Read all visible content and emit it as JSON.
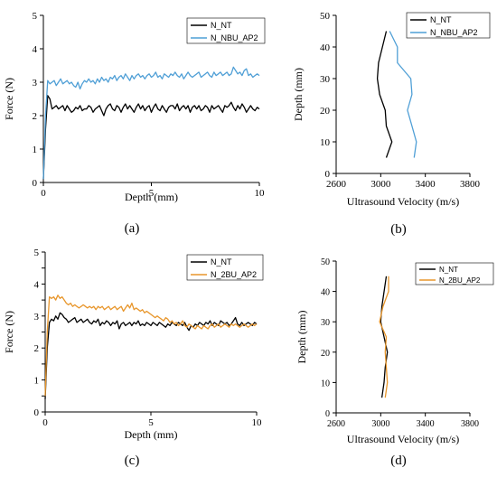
{
  "colors": {
    "black": "#000000",
    "blue": "#4f9fd6",
    "orange": "#e8962b",
    "axis": "#000000"
  },
  "chart_data": [
    {
      "id": "a",
      "type": "line",
      "panel_label": "(a)",
      "xlabel": "Depth (mm)",
      "ylabel": "Force (N)",
      "xlim": [
        0,
        10
      ],
      "ylim": [
        0,
        5
      ],
      "xticks": [
        0,
        5,
        10
      ],
      "yticks": [
        0,
        1,
        2,
        3,
        4,
        5
      ],
      "legend_position": "top-right",
      "series": [
        {
          "name": "N_NT",
          "color": "#000000",
          "x": [
            0,
            0.1,
            0.2,
            0.3,
            0.4,
            0.5,
            0.6,
            0.7,
            0.8,
            0.9,
            1.0,
            1.1,
            1.2,
            1.3,
            1.4,
            1.5,
            1.6,
            1.7,
            1.8,
            1.9,
            2.0,
            2.1,
            2.2,
            2.3,
            2.4,
            2.5,
            2.6,
            2.7,
            2.8,
            2.9,
            3.0,
            3.1,
            3.2,
            3.3,
            3.4,
            3.5,
            3.6,
            3.7,
            3.8,
            3.9,
            4.0,
            4.1,
            4.2,
            4.3,
            4.4,
            4.5,
            4.6,
            4.7,
            4.8,
            4.9,
            5.0,
            5.1,
            5.2,
            5.3,
            5.4,
            5.5,
            5.6,
            5.7,
            5.8,
            5.9,
            6.0,
            6.1,
            6.2,
            6.3,
            6.4,
            6.5,
            6.6,
            6.7,
            6.8,
            6.9,
            7.0,
            7.1,
            7.2,
            7.3,
            7.4,
            7.5,
            7.6,
            7.7,
            7.8,
            7.9,
            8.0,
            8.1,
            8.2,
            8.3,
            8.4,
            8.5,
            8.6,
            8.7,
            8.8,
            8.9,
            9.0,
            9.1,
            9.2,
            9.3,
            9.4,
            9.5,
            9.6,
            9.7,
            9.8,
            9.9,
            10.0
          ],
          "y": [
            0.1,
            1.6,
            2.6,
            2.5,
            2.2,
            2.25,
            2.3,
            2.2,
            2.25,
            2.3,
            2.15,
            2.3,
            2.2,
            2.1,
            2.15,
            2.25,
            2.2,
            2.3,
            2.15,
            2.2,
            2.2,
            2.3,
            2.25,
            2.1,
            2.2,
            2.25,
            2.3,
            2.15,
            2.0,
            2.2,
            2.3,
            2.35,
            2.2,
            2.15,
            2.3,
            2.25,
            2.1,
            2.25,
            2.35,
            2.2,
            2.3,
            2.2,
            2.1,
            2.25,
            2.35,
            2.2,
            2.3,
            2.15,
            2.25,
            2.3,
            2.1,
            2.25,
            2.35,
            2.2,
            2.15,
            2.3,
            2.2,
            2.1,
            2.25,
            2.3,
            2.3,
            2.2,
            2.35,
            2.15,
            2.25,
            2.3,
            2.2,
            2.3,
            2.1,
            2.25,
            2.3,
            2.2,
            2.3,
            2.15,
            2.2,
            2.3,
            2.25,
            2.1,
            2.3,
            2.2,
            2.25,
            2.3,
            2.2,
            2.1,
            2.3,
            2.25,
            2.3,
            2.4,
            2.25,
            2.15,
            2.3,
            2.2,
            2.35,
            2.25,
            2.1,
            2.2,
            2.3,
            2.2,
            2.15,
            2.25,
            2.2
          ]
        },
        {
          "name": "N_NBU_AP2",
          "color": "#4f9fd6",
          "x": [
            0,
            0.1,
            0.2,
            0.3,
            0.4,
            0.5,
            0.6,
            0.7,
            0.8,
            0.9,
            1.0,
            1.1,
            1.2,
            1.3,
            1.4,
            1.5,
            1.6,
            1.7,
            1.8,
            1.9,
            2.0,
            2.1,
            2.2,
            2.3,
            2.4,
            2.5,
            2.6,
            2.7,
            2.8,
            2.9,
            3.0,
            3.1,
            3.2,
            3.3,
            3.4,
            3.5,
            3.6,
            3.7,
            3.8,
            3.9,
            4.0,
            4.1,
            4.2,
            4.3,
            4.4,
            4.5,
            4.6,
            4.7,
            4.8,
            4.9,
            5.0,
            5.1,
            5.2,
            5.3,
            5.4,
            5.5,
            5.6,
            5.7,
            5.8,
            5.9,
            6.0,
            6.1,
            6.2,
            6.3,
            6.4,
            6.5,
            6.6,
            6.7,
            6.8,
            6.9,
            7.0,
            7.1,
            7.2,
            7.3,
            7.4,
            7.5,
            7.6,
            7.7,
            7.8,
            7.9,
            8.0,
            8.1,
            8.2,
            8.3,
            8.4,
            8.5,
            8.6,
            8.7,
            8.8,
            8.9,
            9.0,
            9.1,
            9.2,
            9.3,
            9.4,
            9.5,
            9.6,
            9.7,
            9.8,
            9.9,
            10.0
          ],
          "y": [
            0.1,
            2.0,
            3.05,
            2.95,
            3.0,
            3.05,
            2.9,
            3.0,
            3.1,
            2.95,
            3.0,
            3.05,
            2.95,
            3.0,
            2.9,
            2.85,
            3.0,
            2.8,
            2.95,
            3.05,
            3.0,
            3.1,
            3.0,
            3.05,
            2.95,
            3.1,
            3.0,
            3.15,
            3.05,
            3.1,
            3.0,
            3.15,
            3.1,
            3.2,
            3.05,
            3.15,
            3.2,
            3.1,
            3.25,
            3.15,
            3.05,
            3.2,
            3.1,
            3.2,
            3.25,
            3.15,
            3.2,
            3.1,
            3.2,
            3.25,
            3.15,
            3.2,
            3.3,
            3.15,
            3.2,
            3.1,
            3.25,
            3.2,
            3.15,
            3.25,
            3.2,
            3.3,
            3.2,
            3.15,
            3.25,
            3.1,
            3.2,
            3.3,
            3.2,
            3.15,
            3.2,
            3.25,
            3.3,
            3.15,
            3.2,
            3.25,
            3.3,
            3.2,
            3.15,
            3.3,
            3.2,
            3.25,
            3.3,
            3.2,
            3.25,
            3.3,
            3.2,
            3.25,
            3.45,
            3.35,
            3.25,
            3.3,
            3.2,
            3.35,
            3.4,
            3.2,
            3.25,
            3.15,
            3.2,
            3.25,
            3.2
          ]
        }
      ]
    },
    {
      "id": "b",
      "type": "line",
      "panel_label": "(b)",
      "xlabel": "Ultrasound Velocity (m/s)",
      "ylabel": "Depth (mm)",
      "xlim": [
        2600,
        3800
      ],
      "ylim": [
        0,
        50
      ],
      "xticks": [
        2600,
        3000,
        3400,
        3800
      ],
      "yticks": [
        0,
        10,
        20,
        30,
        40,
        50
      ],
      "legend_position": "top-right",
      "series": [
        {
          "name": "N_NT",
          "color": "#000000",
          "x": [
            3050,
            3100,
            3050,
            3040,
            2990,
            2970,
            2980,
            3050
          ],
          "y": [
            5,
            10,
            15,
            20,
            25,
            30,
            35,
            45
          ]
        },
        {
          "name": "N_NBU_AP2",
          "color": "#4f9fd6",
          "x": [
            3300,
            3320,
            3280,
            3240,
            3280,
            3270,
            3150,
            3150,
            3080
          ],
          "y": [
            5,
            10,
            15,
            20,
            25,
            30,
            35,
            40,
            45
          ]
        }
      ]
    },
    {
      "id": "c",
      "type": "line",
      "panel_label": "(c)",
      "xlabel": "Depth (mm)",
      "ylabel": "Force (N)",
      "xlim": [
        0,
        10
      ],
      "ylim": [
        0,
        5
      ],
      "xticks": [
        0,
        5,
        10
      ],
      "yticks": [
        0,
        0.5,
        1,
        1.5,
        2,
        2.5,
        3,
        3.5,
        4,
        4.5,
        5
      ],
      "yticklabels": [
        "0",
        "",
        "1",
        "",
        "2",
        "",
        "3",
        "",
        "4",
        "",
        "5"
      ],
      "legend_position": "top-right",
      "series": [
        {
          "name": "N_NT",
          "color": "#000000",
          "x": [
            0,
            0.1,
            0.2,
            0.3,
            0.4,
            0.5,
            0.6,
            0.7,
            0.8,
            0.9,
            1.0,
            1.1,
            1.2,
            1.3,
            1.4,
            1.5,
            1.6,
            1.7,
            1.8,
            1.9,
            2.0,
            2.1,
            2.2,
            2.3,
            2.4,
            2.5,
            2.6,
            2.7,
            2.8,
            2.9,
            3.0,
            3.1,
            3.2,
            3.3,
            3.4,
            3.5,
            3.6,
            3.7,
            3.8,
            3.9,
            4.0,
            4.1,
            4.2,
            4.3,
            4.4,
            4.5,
            4.6,
            4.7,
            4.8,
            4.9,
            5.0,
            5.1,
            5.2,
            5.3,
            5.4,
            5.5,
            5.6,
            5.7,
            5.8,
            5.9,
            6.0,
            6.1,
            6.2,
            6.3,
            6.4,
            6.5,
            6.6,
            6.7,
            6.8,
            6.9,
            7.0,
            7.1,
            7.2,
            7.3,
            7.4,
            7.5,
            7.6,
            7.7,
            7.8,
            7.9,
            8.0,
            8.1,
            8.2,
            8.3,
            8.4,
            8.5,
            8.6,
            8.7,
            8.8,
            8.9,
            9.0,
            9.1,
            9.2,
            9.3,
            9.4,
            9.5,
            9.6,
            9.7,
            9.8,
            9.9,
            10.0
          ],
          "y": [
            0.4,
            2.0,
            2.8,
            2.9,
            2.85,
            3.0,
            2.9,
            3.1,
            3.05,
            2.95,
            2.9,
            2.8,
            2.85,
            2.9,
            2.95,
            2.8,
            2.85,
            2.9,
            2.8,
            2.85,
            2.9,
            2.8,
            2.75,
            2.85,
            2.8,
            2.9,
            2.7,
            2.8,
            2.75,
            2.85,
            2.8,
            2.7,
            2.8,
            2.75,
            2.85,
            2.6,
            2.75,
            2.8,
            2.7,
            2.75,
            2.8,
            2.7,
            2.8,
            2.75,
            2.85,
            2.7,
            2.75,
            2.7,
            2.8,
            2.75,
            2.7,
            2.8,
            2.75,
            2.7,
            2.8,
            2.75,
            2.7,
            2.65,
            2.75,
            2.7,
            2.8,
            2.75,
            2.7,
            2.8,
            2.75,
            2.7,
            2.8,
            2.65,
            2.55,
            2.7,
            2.65,
            2.75,
            2.7,
            2.8,
            2.75,
            2.7,
            2.8,
            2.75,
            2.85,
            2.7,
            2.8,
            2.75,
            2.7,
            2.85,
            2.8,
            2.75,
            2.8,
            2.7,
            2.75,
            2.85,
            2.95,
            2.75,
            2.7,
            2.8,
            2.7,
            2.75,
            2.8,
            2.75,
            2.7,
            2.8,
            2.75
          ]
        },
        {
          "name": "N_2BU_AP2",
          "color": "#e8962b",
          "x": [
            0,
            0.1,
            0.2,
            0.3,
            0.4,
            0.5,
            0.6,
            0.7,
            0.8,
            0.9,
            1.0,
            1.1,
            1.2,
            1.3,
            1.4,
            1.5,
            1.6,
            1.7,
            1.8,
            1.9,
            2.0,
            2.1,
            2.2,
            2.3,
            2.4,
            2.5,
            2.6,
            2.7,
            2.8,
            2.9,
            3.0,
            3.1,
            3.2,
            3.3,
            3.4,
            3.5,
            3.6,
            3.7,
            3.8,
            3.9,
            4.0,
            4.1,
            4.2,
            4.3,
            4.4,
            4.5,
            4.6,
            4.7,
            4.8,
            4.9,
            5.0,
            5.1,
            5.2,
            5.3,
            5.4,
            5.5,
            5.6,
            5.7,
            5.8,
            5.9,
            6.0,
            6.1,
            6.2,
            6.3,
            6.4,
            6.5,
            6.6,
            6.7,
            6.8,
            6.9,
            7.0,
            7.1,
            7.2,
            7.3,
            7.4,
            7.5,
            7.6,
            7.7,
            7.8,
            7.9,
            8.0,
            8.1,
            8.2,
            8.3,
            8.4,
            8.5,
            8.6,
            8.7,
            8.8,
            8.9,
            9.0,
            9.1,
            9.2,
            9.3,
            9.4,
            9.5,
            9.6,
            9.7,
            9.8,
            9.9,
            10.0
          ],
          "y": [
            0.5,
            2.5,
            3.6,
            3.55,
            3.6,
            3.5,
            3.65,
            3.55,
            3.6,
            3.5,
            3.4,
            3.35,
            3.4,
            3.3,
            3.35,
            3.3,
            3.25,
            3.3,
            3.35,
            3.3,
            3.25,
            3.3,
            3.25,
            3.3,
            3.2,
            3.3,
            3.25,
            3.3,
            3.2,
            3.25,
            3.3,
            3.2,
            3.25,
            3.3,
            3.2,
            3.25,
            3.3,
            3.15,
            3.25,
            3.35,
            3.25,
            3.4,
            3.2,
            3.25,
            3.2,
            3.15,
            3.2,
            3.1,
            3.15,
            3.1,
            3.05,
            3.0,
            2.95,
            3.0,
            2.95,
            2.9,
            2.85,
            2.95,
            2.9,
            2.8,
            2.85,
            2.75,
            2.8,
            2.7,
            2.75,
            2.85,
            2.7,
            2.65,
            2.75,
            2.7,
            2.65,
            2.6,
            2.7,
            2.65,
            2.6,
            2.7,
            2.65,
            2.6,
            2.7,
            2.75,
            2.65,
            2.7,
            2.75,
            2.65,
            2.7,
            2.75,
            2.7,
            2.65,
            2.75,
            2.7,
            2.75,
            2.7,
            2.65,
            2.7,
            2.75,
            2.7,
            2.65,
            2.7,
            2.75,
            2.7,
            2.75
          ]
        }
      ]
    },
    {
      "id": "d",
      "type": "line",
      "panel_label": "(d)",
      "xlabel": "Ultrasound Velocity (m/s)",
      "ylabel": "Depth (mm)",
      "xlim": [
        2600,
        3800
      ],
      "ylim": [
        0,
        50
      ],
      "xticks": [
        2600,
        3000,
        3400,
        3800
      ],
      "yticks": [
        0,
        10,
        20,
        30,
        40,
        50
      ],
      "legend_position": "top-right",
      "series": [
        {
          "name": "N_NT",
          "color": "#000000",
          "x": [
            3010,
            3030,
            3040,
            3060,
            3030,
            3000,
            3010,
            3050
          ],
          "y": [
            5,
            10,
            15,
            20,
            25,
            30,
            35,
            45
          ]
        },
        {
          "name": "N_2BU_AP2",
          "color": "#e8962b",
          "x": [
            3040,
            3060,
            3050,
            3040,
            3050,
            2990,
            3020,
            3070,
            3070
          ],
          "y": [
            5,
            10,
            15,
            20,
            25,
            30,
            35,
            40,
            45
          ]
        }
      ]
    }
  ]
}
